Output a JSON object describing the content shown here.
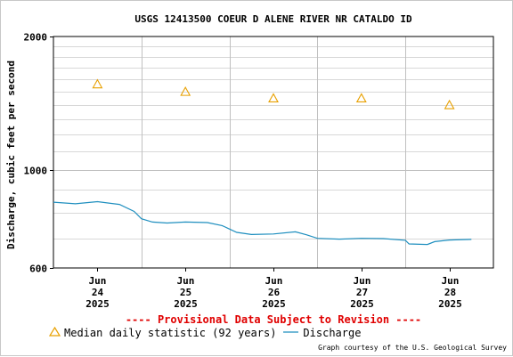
{
  "chart_data": {
    "type": "line",
    "title": "USGS 12413500 COEUR D ALENE RIVER NR CATALDO ID",
    "ylabel": "Discharge, cubic feet per second",
    "xlabel": "",
    "y_scale": "log",
    "ylim": [
      600,
      2000
    ],
    "y_tick_labels": [
      "2000",
      "1000",
      "600"
    ],
    "y_ticks": [
      2000,
      1000,
      600
    ],
    "y_minor_gridlines": [
      700,
      800,
      900,
      1100,
      1200,
      1300,
      1400,
      1500,
      1600,
      1700,
      1800,
      1900
    ],
    "x_range": [
      "2025-06-23T12:00",
      "2025-06-28T12:00"
    ],
    "x_ticks": [
      {
        "date": "2025-06-24",
        "month": "Jun",
        "day": "24",
        "year": "2025"
      },
      {
        "date": "2025-06-25",
        "month": "Jun",
        "day": "25",
        "year": "2025"
      },
      {
        "date": "2025-06-26",
        "month": "Jun",
        "day": "26",
        "year": "2025"
      },
      {
        "date": "2025-06-27",
        "month": "Jun",
        "day": "27",
        "year": "2025"
      },
      {
        "date": "2025-06-28",
        "month": "Jun",
        "day": "28",
        "year": "2025"
      }
    ],
    "grid": true,
    "series": [
      {
        "name": "Median daily statistic (92 years)",
        "marker": "triangle",
        "color": "#e8a000",
        "points": [
          {
            "x": "2025-06-24T00:00",
            "y": 1560
          },
          {
            "x": "2025-06-25T00:00",
            "y": 1500
          },
          {
            "x": "2025-06-26T00:00",
            "y": 1450
          },
          {
            "x": "2025-06-27T00:00",
            "y": 1450
          },
          {
            "x": "2025-06-28T00:00",
            "y": 1400
          }
        ]
      },
      {
        "name": "Discharge",
        "color": "#1f8fbf",
        "points": [
          {
            "x": "2025-06-23T12:00",
            "y": 845
          },
          {
            "x": "2025-06-23T18:00",
            "y": 838
          },
          {
            "x": "2025-06-24T00:00",
            "y": 847
          },
          {
            "x": "2025-06-24T06:00",
            "y": 835
          },
          {
            "x": "2025-06-24T10:00",
            "y": 805
          },
          {
            "x": "2025-06-24T12:00",
            "y": 775
          },
          {
            "x": "2025-06-24T15:00",
            "y": 762
          },
          {
            "x": "2025-06-24T19:00",
            "y": 758
          },
          {
            "x": "2025-06-25T00:00",
            "y": 762
          },
          {
            "x": "2025-06-25T06:00",
            "y": 760
          },
          {
            "x": "2025-06-25T10:00",
            "y": 748
          },
          {
            "x": "2025-06-25T14:00",
            "y": 722
          },
          {
            "x": "2025-06-25T18:00",
            "y": 714
          },
          {
            "x": "2025-06-26T00:00",
            "y": 716
          },
          {
            "x": "2025-06-26T06:00",
            "y": 724
          },
          {
            "x": "2025-06-26T09:00",
            "y": 713
          },
          {
            "x": "2025-06-26T12:00",
            "y": 700
          },
          {
            "x": "2025-06-26T18:00",
            "y": 697
          },
          {
            "x": "2025-06-27T00:00",
            "y": 700
          },
          {
            "x": "2025-06-27T06:00",
            "y": 699
          },
          {
            "x": "2025-06-27T12:00",
            "y": 693
          },
          {
            "x": "2025-06-27T13:00",
            "y": 680
          },
          {
            "x": "2025-06-27T18:00",
            "y": 678
          },
          {
            "x": "2025-06-27T20:00",
            "y": 688
          },
          {
            "x": "2025-06-28T00:00",
            "y": 694
          },
          {
            "x": "2025-06-28T06:00",
            "y": 696
          }
        ]
      }
    ]
  },
  "notice": "---- Provisional Data Subject to Revision ----",
  "legend": {
    "median_label": "Median daily statistic (92 years)",
    "discharge_label": "Discharge"
  },
  "credit": "Graph courtesy of the U.S. Geological Survey",
  "colors": {
    "notice": "#e00000",
    "median": "#e8a000",
    "discharge": "#1f8fbf",
    "major_grid": "#c0c0c0",
    "minor_grid": "#d8d8d8"
  }
}
